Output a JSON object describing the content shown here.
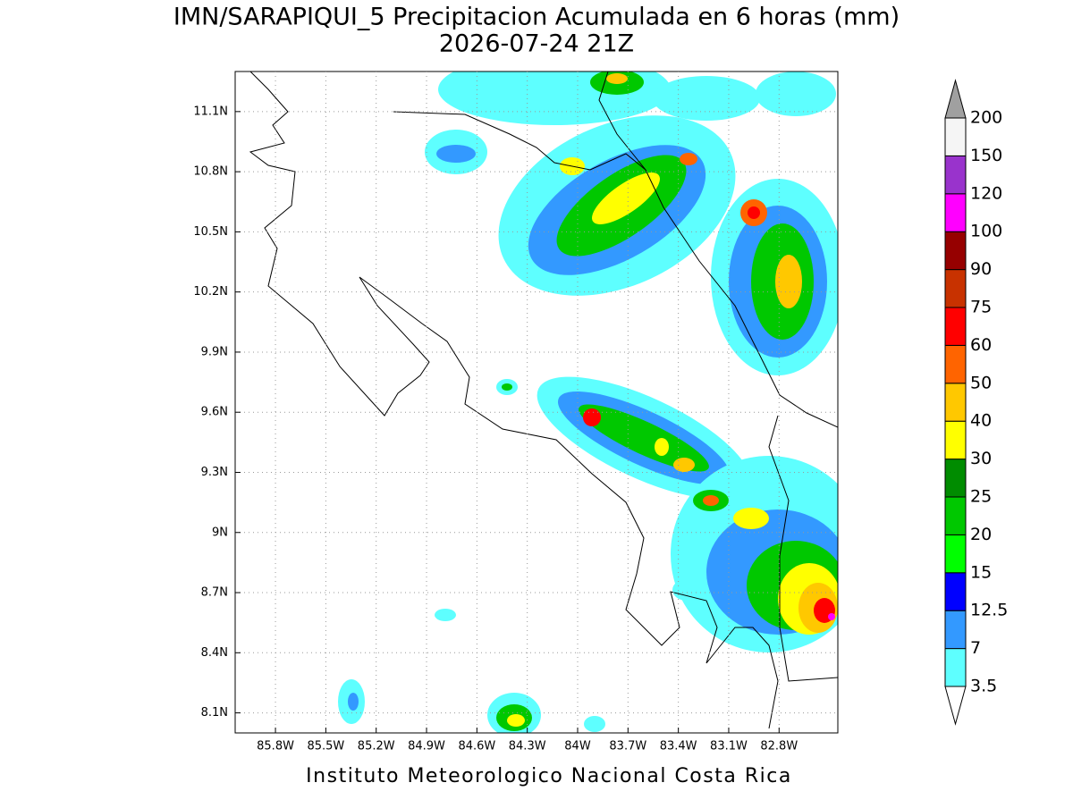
{
  "title": "IMN/SARAPIQUI_5 Precipitacion Acumulada en 6 horas (mm)",
  "subtitle": "2026-07-24 21Z",
  "footer": "Instituto Meteorologico Nacional Costa Rica",
  "map": {
    "xlim": [
      -86.04,
      -82.45
    ],
    "ylim": [
      8.0,
      11.3
    ],
    "grid": true,
    "xticks": [
      {
        "value": -85.8,
        "label": "85.8W"
      },
      {
        "value": -85.5,
        "label": "85.5W"
      },
      {
        "value": -85.2,
        "label": "85.2W"
      },
      {
        "value": -84.9,
        "label": "84.9W"
      },
      {
        "value": -84.6,
        "label": "84.6W"
      },
      {
        "value": -84.3,
        "label": "84.3W"
      },
      {
        "value": -84,
        "label": "84W"
      },
      {
        "value": -83.7,
        "label": "83.7W"
      },
      {
        "value": -83.4,
        "label": "83.4W"
      },
      {
        "value": -83.1,
        "label": "83.1W"
      },
      {
        "value": -82.8,
        "label": "82.8W"
      }
    ],
    "yticks": [
      {
        "value": 8.1,
        "label": "8.1N"
      },
      {
        "value": 8.4,
        "label": "8.4N"
      },
      {
        "value": 8.7,
        "label": "8.7N"
      },
      {
        "value": 9,
        "label": "9N"
      },
      {
        "value": 9.3,
        "label": "9.3N"
      },
      {
        "value": 9.6,
        "label": "9.6N"
      },
      {
        "value": 9.9,
        "label": "9.9N"
      },
      {
        "value": 10.2,
        "label": "10.2N"
      },
      {
        "value": 10.5,
        "label": "10.5N"
      },
      {
        "value": 10.8,
        "label": "10.8N"
      },
      {
        "value": 11.1,
        "label": "11.1N"
      }
    ]
  },
  "colorbar": {
    "levels": [
      3.5,
      7,
      12.5,
      15,
      20,
      25,
      30,
      40,
      50,
      60,
      75,
      90,
      100,
      120,
      150,
      200
    ],
    "colors": [
      "#5effff",
      "#3399ff",
      "#0000ff",
      "#00ff00",
      "#00c800",
      "#008c00",
      "#ffff00",
      "#ffc800",
      "#ff6400",
      "#ff0000",
      "#c83200",
      "#960000",
      "#ff00ff",
      "#9933cc",
      "#f5f5f5"
    ],
    "under_color": "#ffffff",
    "over_color": "#a0a0a0"
  }
}
